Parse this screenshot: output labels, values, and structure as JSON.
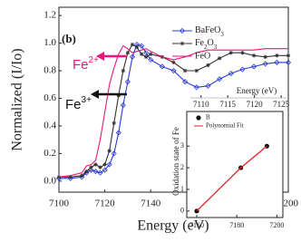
{
  "chart_data": [
    {
      "type": "line",
      "panel_label": "(b)",
      "xlabel": "Energy (eV)",
      "ylabel": "Normalized (I/Io)",
      "xlim": [
        7100,
        7200
      ],
      "xticks": [
        7100,
        7120,
        7140,
        7160,
        7180,
        7200
      ],
      "ylim": [
        -0.08,
        1.26
      ],
      "yticks": [
        {
          "value": 0,
          "label": "0.0"
        },
        0.2,
        0.4,
        0.6,
        0.8,
        {
          "value": 1,
          "label": "1.0"
        },
        1.2
      ],
      "legend": "upper right",
      "x": [
        7100,
        7105,
        7110,
        7112,
        7114,
        7116,
        7118,
        7120,
        7122,
        7124,
        7126,
        7128,
        7130,
        7132,
        7134,
        7136,
        7138,
        7140,
        7145,
        7150,
        7155,
        7160,
        7165,
        7170,
        7175,
        7180,
        7185,
        7190,
        7195,
        7200
      ],
      "series": [
        {
          "name": "BaFeO3",
          "color": "#2a3bd6",
          "marker": "diamond",
          "values": [
            0.02,
            0.02,
            0.03,
            0.06,
            0.08,
            0.07,
            0.06,
            0.08,
            0.12,
            0.2,
            0.35,
            0.55,
            0.72,
            0.9,
            0.99,
            0.98,
            0.93,
            0.88,
            0.83,
            0.8,
            0.72,
            0.68,
            0.69,
            0.74,
            0.78,
            0.81,
            0.83,
            0.85,
            0.86,
            0.86
          ]
        },
        {
          "name": "Fe2O3",
          "color": "#333333",
          "marker": "star",
          "values": [
            0.03,
            0.03,
            0.04,
            0.07,
            0.1,
            0.12,
            0.1,
            0.12,
            0.22,
            0.42,
            0.62,
            0.8,
            0.93,
            0.99,
            0.97,
            0.92,
            0.9,
            0.92,
            0.9,
            0.86,
            0.8,
            0.8,
            0.84,
            0.89,
            0.93,
            0.93,
            0.91,
            0.9,
            0.91,
            0.91
          ]
        },
        {
          "name": "FeO",
          "color": "#e8177a",
          "marker": "none",
          "values": [
            0.03,
            0.04,
            0.06,
            0.11,
            0.12,
            0.15,
            0.3,
            0.5,
            0.7,
            0.82,
            0.92,
            0.98,
            0.96,
            0.93,
            0.94,
            0.95,
            0.96,
            0.94,
            0.9,
            0.88,
            0.9,
            0.93,
            0.95,
            0.95,
            0.95,
            0.95,
            0.95,
            0.96,
            0.96,
            0.96
          ]
        }
      ],
      "annotations": [
        {
          "text": "Fe",
          "superscript": "2+",
          "color": "#e8177a"
        },
        {
          "text": "Fe",
          "superscript": "3+",
          "color": "#111111"
        }
      ]
    },
    {
      "type": "line",
      "xlabel": "Energy (eV)",
      "xlim": [
        7108,
        7126
      ],
      "xticks": [
        7110,
        7115,
        7120,
        7125
      ]
    },
    {
      "type": "scatter",
      "ylabel": "Oxidation state of Fe",
      "xlim": [
        7155,
        7203
      ],
      "xticks": [
        7160,
        7180,
        7200
      ],
      "ylim": [
        -0.3,
        4.6
      ],
      "yticks": [
        0,
        1,
        2,
        3
      ],
      "legend": "upper left",
      "series": [
        {
          "name": "B",
          "color": "#111111",
          "marker": "circle",
          "line": false,
          "x": [
            7160,
            7182,
            7195
          ],
          "values": [
            0,
            2,
            3
          ]
        },
        {
          "name": "Polynomial Fit",
          "color": "#e02020",
          "marker": "none",
          "line": true,
          "x": [
            7160,
            7182,
            7195
          ],
          "values": [
            0,
            2,
            3
          ]
        }
      ]
    }
  ]
}
